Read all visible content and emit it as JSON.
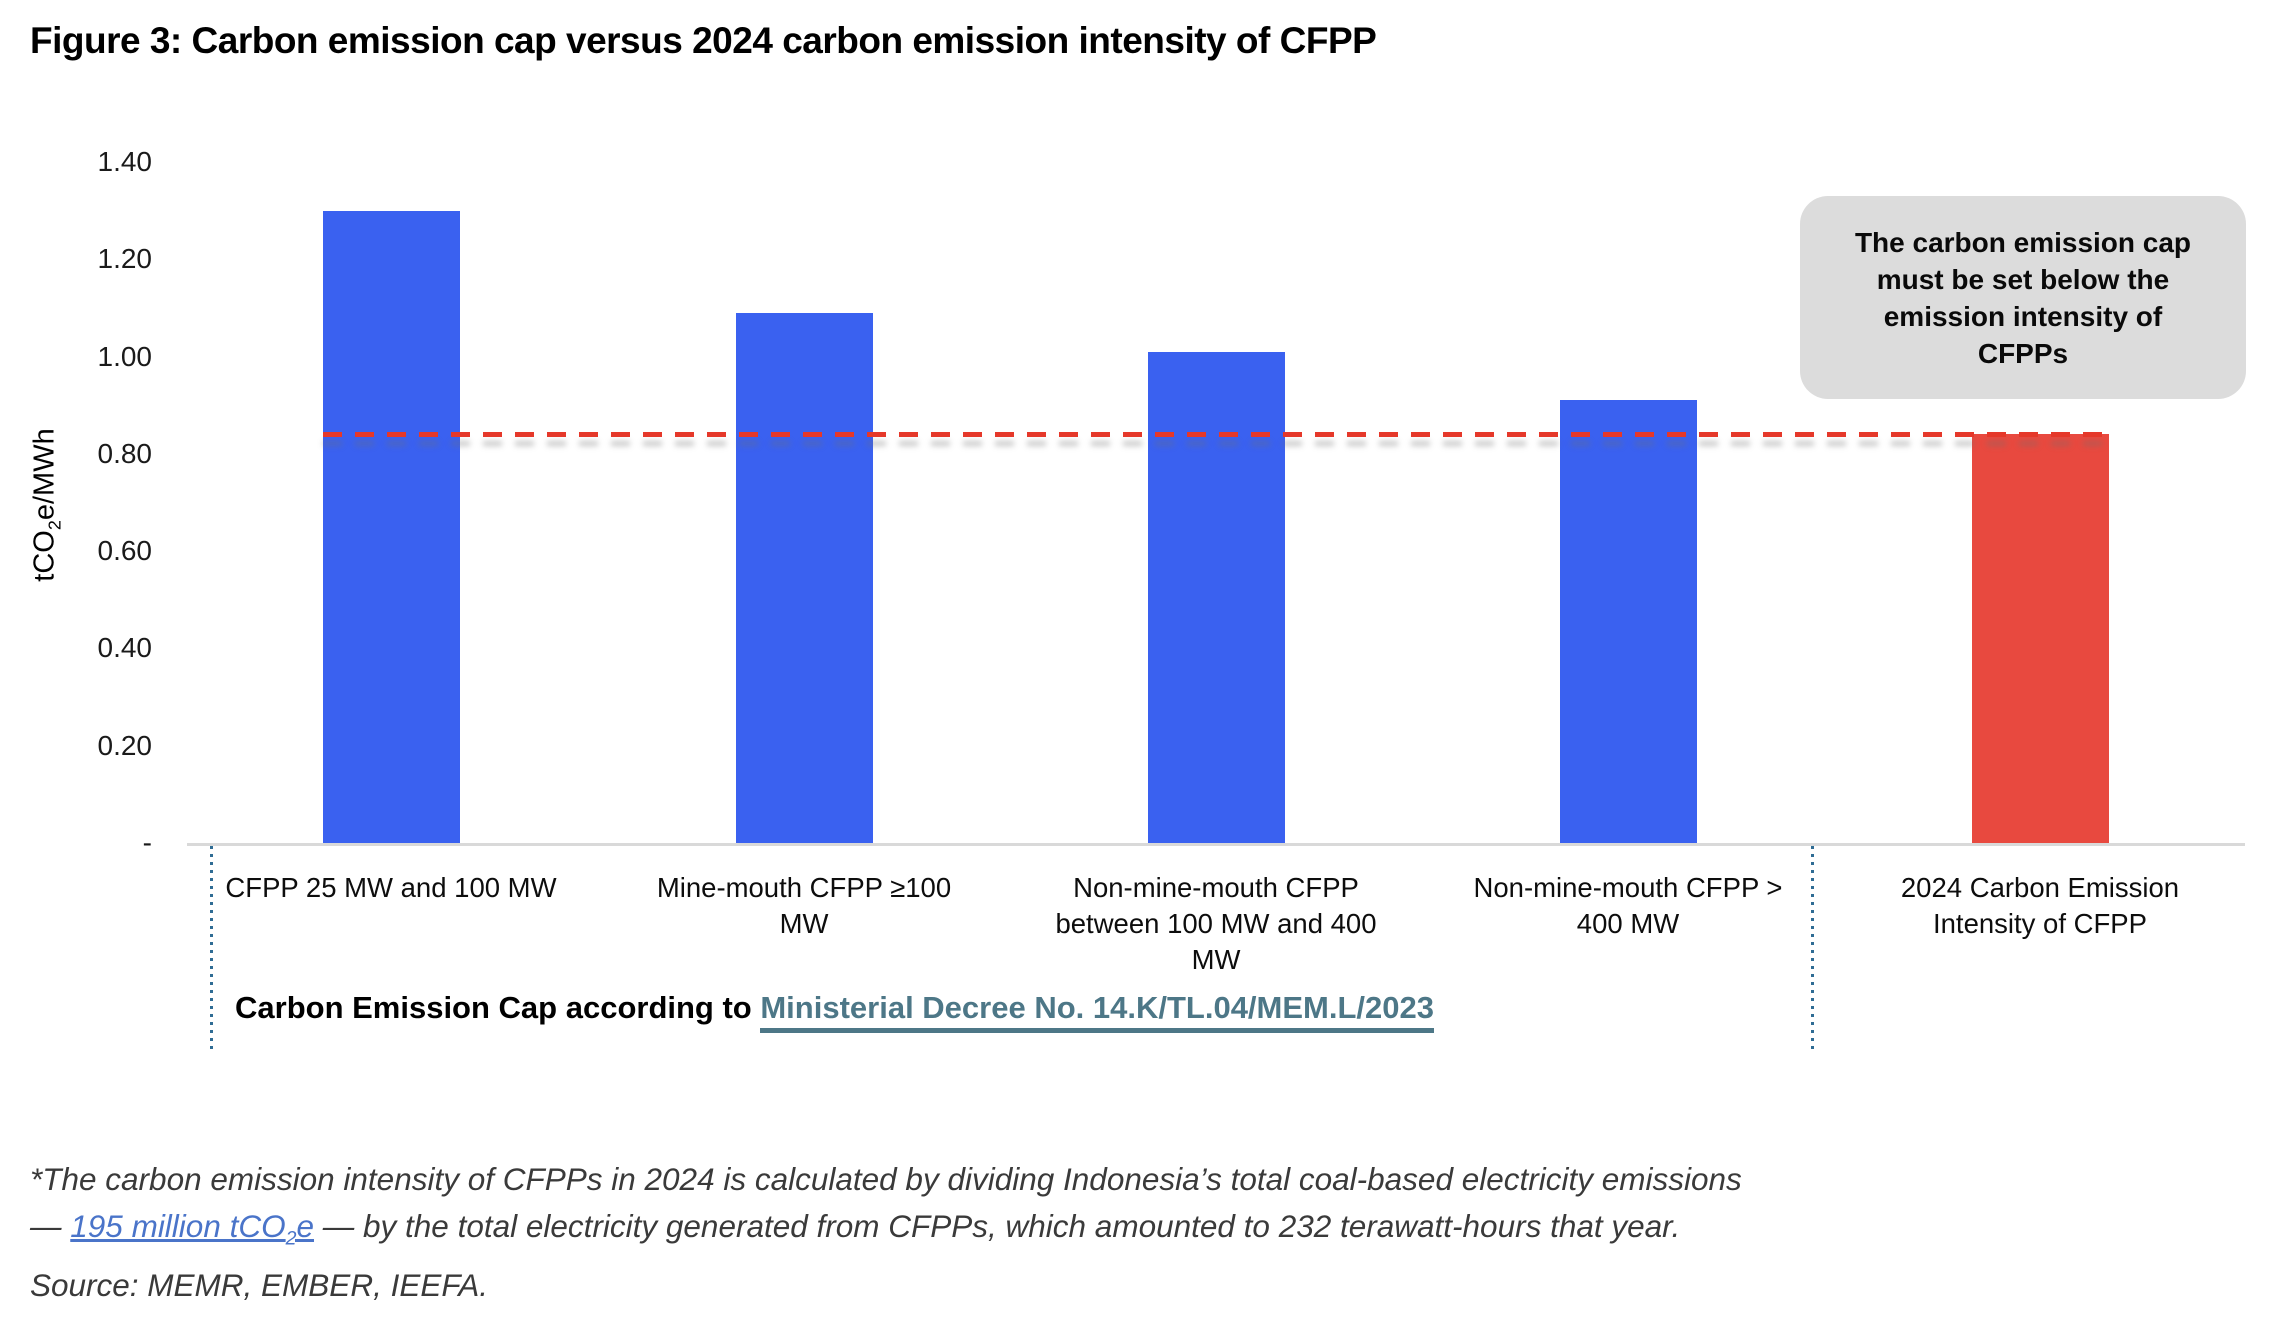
{
  "title": "Figure 3: Carbon emission cap versus 2024 carbon emission intensity of CFPP",
  "chart_data": {
    "type": "bar",
    "title": "Figure 3: Carbon emission cap versus 2024 carbon emission intensity of CFPP",
    "ylabel": "tCO2e/MWh",
    "ylabel_parts": {
      "prefix": "tCO",
      "sub": "2",
      "suffix": "e/MWh"
    },
    "ylim": [
      0,
      1.4
    ],
    "ytick_step": 0.2,
    "ytick_labels": [
      "-",
      "0.20",
      "0.40",
      "0.60",
      "0.80",
      "1.00",
      "1.20",
      "1.40"
    ],
    "grid": false,
    "legend": "none",
    "categories": [
      "CFPP 25 MW and 100 MW",
      "Mine-mouth CFPP ≥100 MW",
      "Non-mine-mouth CFPP between 100 MW and 400 MW",
      "Non-mine-mouth CFPP > 400 MW",
      "2024 Carbon Emission Intensity of CFPP"
    ],
    "category_display": [
      "CFPP 25 MW and 100 MW",
      "Mine-mouth CFPP ≥100 MW",
      "Non-mine-mouth CFPP\nbetween 100 MW and 400\nMW",
      "Non-mine-mouth CFPP >\n400 MW",
      "2024 Carbon Emission\nIntensity of CFPP"
    ],
    "values": [
      1.3,
      1.09,
      1.01,
      0.91,
      0.84
    ],
    "bar_colors": [
      "#3a61f0",
      "#3a61f0",
      "#3a61f0",
      "#3a61f0",
      "#e8493f"
    ],
    "reference_line": {
      "value": 0.84,
      "color": "#e5382a",
      "style": "dashed"
    }
  },
  "annotation": {
    "text": "The carbon emission cap\nmust be set below the\nemission intensity of\nCFPPs",
    "bg_color": "#dcdcdc"
  },
  "bracket": {
    "prefix": "Carbon Emission Cap according to ",
    "link_text": "Ministerial Decree No. 14.K/TL.04/MEM.L/2023",
    "link_color": "#4d7787"
  },
  "footnote": {
    "line1": "*The carbon emission intensity of CFPPs in 2024 is calculated by dividing Indonesia’s total coal-based electricity emissions",
    "line2_prefix": "— ",
    "link": {
      "prefix": "195 million tCO",
      "sub": "2",
      "suffix": "e"
    },
    "line2_suffix": " — by the total electricity generated from CFPPs, which amounted to 232 terawatt-hours that year.",
    "source": "Source: MEMR, EMBER, IEEFA.",
    "link_color": "#4a74c9"
  },
  "colors": {
    "cap_bar": "#3a61f0",
    "intensity_bar": "#e8493f",
    "reference_line": "#e5382a",
    "axis_line": "#d9d9d9",
    "annotation_bg": "#dcdcdc",
    "bracket_dotted": "#2f6c94",
    "decree_link": "#4d7787",
    "footnote_link": "#4a74c9"
  }
}
